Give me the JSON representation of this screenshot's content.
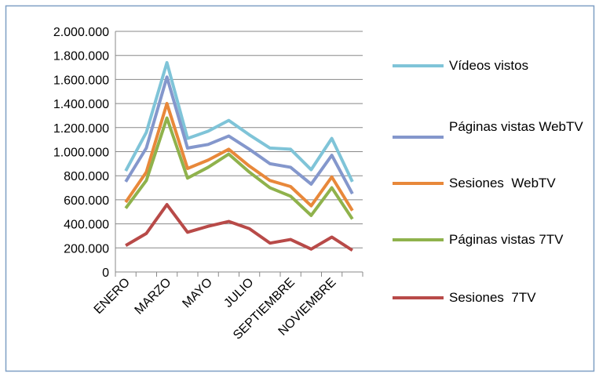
{
  "chart_data": {
    "type": "line",
    "categories": [
      "ENERO",
      null,
      "MARZO",
      null,
      "MAYO",
      null,
      "JULIO",
      null,
      "SEPTIEMBRE",
      null,
      "NOVIEMBRE",
      null
    ],
    "series": [
      {
        "name": "Vídeos vistos",
        "color": "#7fc4d8",
        "values": [
          840000,
          1160000,
          1740000,
          1110000,
          1170000,
          1260000,
          1140000,
          1030000,
          1020000,
          850000,
          1110000,
          750000
        ]
      },
      {
        "name": "Páginas vistas WebTV",
        "color": "#8497cc",
        "values": [
          750000,
          1030000,
          1620000,
          1030000,
          1060000,
          1130000,
          1020000,
          900000,
          870000,
          730000,
          970000,
          650000
        ]
      },
      {
        "name": "Sesiones  WebTV",
        "color": "#e8883a",
        "values": [
          580000,
          830000,
          1400000,
          860000,
          930000,
          1020000,
          880000,
          760000,
          710000,
          550000,
          790000,
          510000
        ]
      },
      {
        "name": "Páginas vistas 7TV",
        "color": "#8fb24c",
        "values": [
          530000,
          760000,
          1280000,
          780000,
          870000,
          980000,
          830000,
          700000,
          630000,
          470000,
          700000,
          440000
        ]
      },
      {
        "name": "Sesiones  7TV",
        "color": "#b84a48",
        "values": [
          220000,
          320000,
          560000,
          330000,
          380000,
          420000,
          360000,
          240000,
          270000,
          190000,
          290000,
          180000
        ]
      }
    ],
    "ylim": [
      0,
      2000000
    ],
    "yticks": [
      0,
      {
        "value": 200000,
        "label": "200.000"
      },
      {
        "value": 400000,
        "label": "400.000"
      },
      {
        "value": 600000,
        "label": "600.000"
      },
      {
        "value": 800000,
        "label": "800.000"
      },
      {
        "value": 1000000,
        "label": "1.000.000"
      },
      {
        "value": 1200000,
        "label": "1.200.000"
      },
      {
        "value": 1400000,
        "label": "1.400.000"
      },
      {
        "value": 1600000,
        "label": "1.600.000"
      },
      {
        "value": 1800000,
        "label": "1.800.000"
      },
      {
        "value": 2000000,
        "label": "2.000.000"
      }
    ],
    "grid": true,
    "legend": "right"
  }
}
